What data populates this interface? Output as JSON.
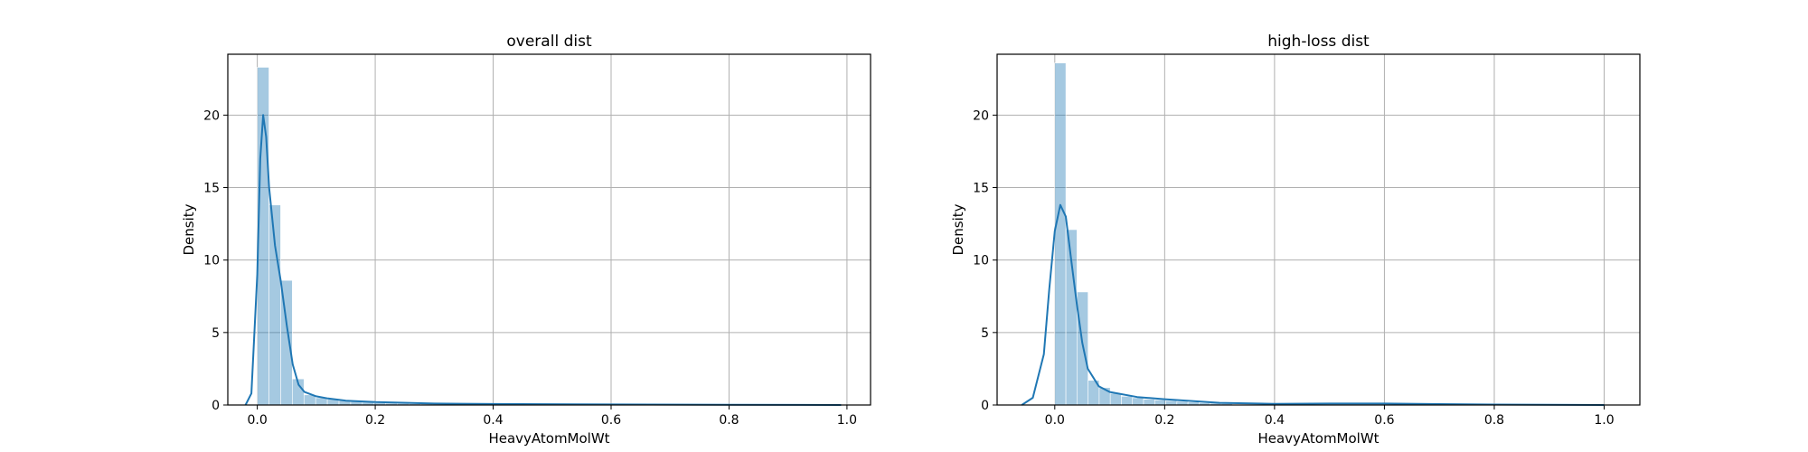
{
  "chart_data": [
    {
      "type": "bar",
      "title": "overall dist",
      "xlabel": "HeavyAtomMolWt",
      "ylabel": "Density",
      "xlim": [
        -0.05,
        1.04
      ],
      "ylim": [
        0,
        24.2
      ],
      "xticks": [
        0.0,
        0.2,
        0.4,
        0.6,
        0.8,
        1.0
      ],
      "xtick_labels": [
        "0.0",
        "0.2",
        "0.4",
        "0.6",
        "0.8",
        "1.0"
      ],
      "yticks": [
        0,
        5,
        10,
        15,
        20
      ],
      "ytick_labels": [
        "0",
        "5",
        "10",
        "15",
        "20"
      ],
      "grid": true,
      "bin_width": 0.0198,
      "bins": [
        {
          "x0": 0.0,
          "y": 23.3
        },
        {
          "x0": 0.0198,
          "y": 13.8
        },
        {
          "x0": 0.0396,
          "y": 8.6
        },
        {
          "x0": 0.0594,
          "y": 1.8
        },
        {
          "x0": 0.0792,
          "y": 0.7
        },
        {
          "x0": 0.099,
          "y": 0.5
        },
        {
          "x0": 0.1188,
          "y": 0.4
        },
        {
          "x0": 0.1386,
          "y": 0.3
        },
        {
          "x0": 0.1584,
          "y": 0.25
        },
        {
          "x0": 0.1782,
          "y": 0.2
        },
        {
          "x0": 0.198,
          "y": 0.15
        },
        {
          "x0": 0.2178,
          "y": 0.12
        },
        {
          "x0": 0.2376,
          "y": 0.1
        },
        {
          "x0": 0.2574,
          "y": 0.08
        },
        {
          "x0": 0.2772,
          "y": 0.07
        },
        {
          "x0": 0.297,
          "y": 0.06
        },
        {
          "x0": 0.3168,
          "y": 0.05
        },
        {
          "x0": 0.3366,
          "y": 0.05
        },
        {
          "x0": 0.3564,
          "y": 0.04
        },
        {
          "x0": 0.3762,
          "y": 0.04
        }
      ],
      "kde": {
        "x": [
          -0.02,
          -0.01,
          0.0,
          0.005,
          0.01,
          0.015,
          0.02,
          0.03,
          0.04,
          0.05,
          0.06,
          0.07,
          0.08,
          0.1,
          0.12,
          0.15,
          0.2,
          0.3,
          0.4,
          0.6,
          0.8,
          0.99
        ],
        "y": [
          0,
          0.8,
          9,
          17,
          20,
          18.5,
          15,
          11,
          8.5,
          5.5,
          2.8,
          1.4,
          0.9,
          0.6,
          0.45,
          0.3,
          0.2,
          0.1,
          0.07,
          0.04,
          0.02,
          0
        ]
      }
    },
    {
      "type": "bar",
      "title": "high-loss dist",
      "xlabel": "HeavyAtomMolWt",
      "ylabel": "Density",
      "xlim": [
        -0.105,
        1.065
      ],
      "ylim": [
        0,
        24.2
      ],
      "xticks": [
        0.0,
        0.2,
        0.4,
        0.6,
        0.8,
        1.0
      ],
      "xtick_labels": [
        "0.0",
        "0.2",
        "0.4",
        "0.6",
        "0.8",
        "1.0"
      ],
      "yticks": [
        0,
        5,
        10,
        15,
        20
      ],
      "ytick_labels": [
        "0",
        "5",
        "10",
        "15",
        "20"
      ],
      "grid": true,
      "bin_width": 0.0202,
      "bins": [
        {
          "x0": 0.0,
          "y": 23.6
        },
        {
          "x0": 0.0202,
          "y": 12.1
        },
        {
          "x0": 0.0404,
          "y": 7.8
        },
        {
          "x0": 0.0606,
          "y": 1.7
        },
        {
          "x0": 0.0808,
          "y": 1.2
        },
        {
          "x0": 0.101,
          "y": 0.8
        },
        {
          "x0": 0.1212,
          "y": 0.6
        },
        {
          "x0": 0.1414,
          "y": 0.5
        },
        {
          "x0": 0.1616,
          "y": 0.4
        },
        {
          "x0": 0.1818,
          "y": 0.35
        },
        {
          "x0": 0.202,
          "y": 0.3
        },
        {
          "x0": 0.2222,
          "y": 0.25
        },
        {
          "x0": 0.2424,
          "y": 0.2
        },
        {
          "x0": 0.2626,
          "y": 0.15
        },
        {
          "x0": 0.2828,
          "y": 0.12
        },
        {
          "x0": 0.303,
          "y": 0.1
        }
      ],
      "kde": {
        "x": [
          -0.06,
          -0.04,
          -0.02,
          -0.01,
          0.0,
          0.01,
          0.02,
          0.03,
          0.04,
          0.05,
          0.06,
          0.08,
          0.1,
          0.15,
          0.2,
          0.3,
          0.4,
          0.5,
          0.6,
          0.7,
          0.8,
          1.0
        ],
        "y": [
          0,
          0.5,
          3.5,
          8,
          12,
          13.8,
          13,
          10,
          7,
          4.3,
          2.5,
          1.3,
          0.9,
          0.55,
          0.4,
          0.15,
          0.08,
          0.1,
          0.1,
          0.06,
          0.03,
          0
        ]
      }
    }
  ]
}
